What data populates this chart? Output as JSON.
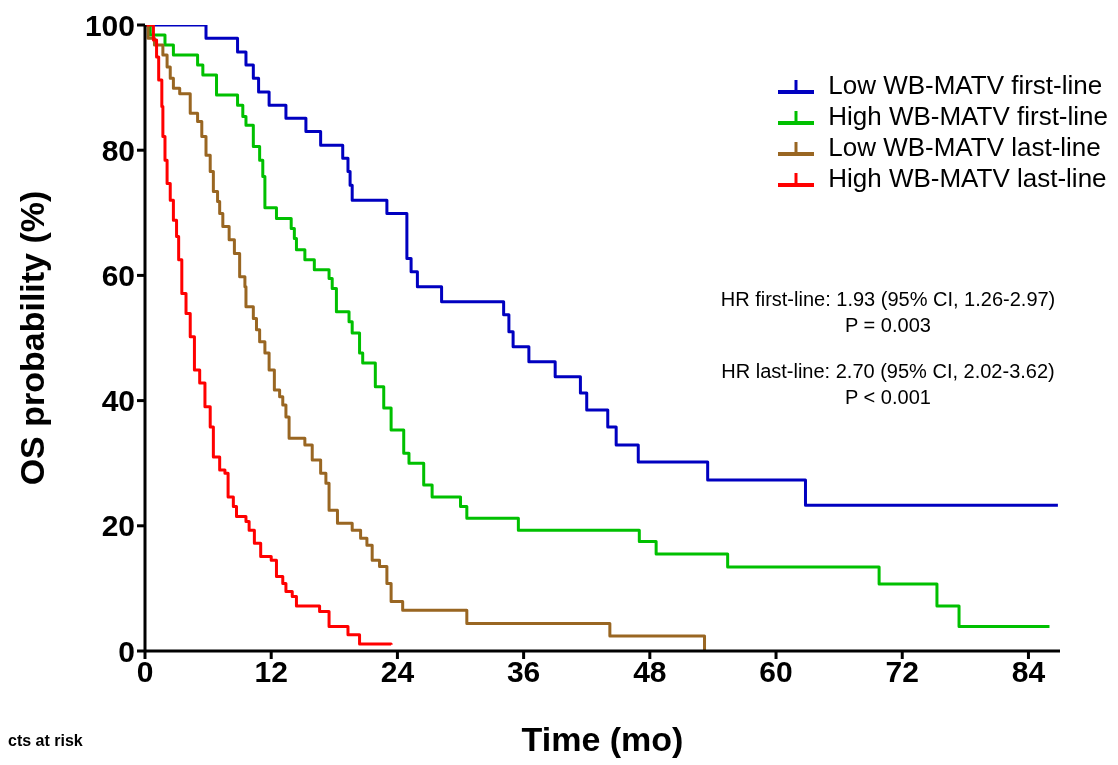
{
  "chart_data": {
    "type": "step",
    "xlabel": "Time (mo)",
    "ylabel": "OS probability (%)",
    "xlim": [
      0,
      87
    ],
    "xticks": [
      0,
      12,
      24,
      36,
      48,
      60,
      72,
      84
    ],
    "ylim": [
      0,
      100
    ],
    "yticks": [
      0,
      20,
      40,
      60,
      80,
      100
    ],
    "grid": false,
    "legend": "top right",
    "marker": "none",
    "line_style": "solid",
    "annotations": [
      "HR first-line: 1.93 (95% CI, 1.26-2.97)",
      "P = 0.003",
      "HR last-line: 2.70 (95% CI, 2.02-3.62)",
      "P < 0.001",
      "cts at risk"
    ],
    "series": [
      {
        "name": "Low WB-MATV first-line",
        "color": "#0000c0",
        "x": [
          0,
          5.8,
          8.8,
          9.6,
          10.3,
          10.8,
          11.8,
          13.4,
          15.3,
          16.7,
          18.8,
          19.3,
          19.5,
          19.7,
          23.0,
          24.9,
          25.3,
          25.9,
          28.2,
          34.1,
          34.6,
          35.0,
          36.5,
          39.0,
          41.4,
          42.0,
          44.0,
          44.8,
          46.9,
          53.5,
          62.8,
          86.8
        ],
        "values": [
          100,
          97.9,
          95.7,
          93.6,
          91.5,
          89.3,
          87.2,
          85.1,
          83.0,
          80.8,
          78.7,
          76.6,
          74.4,
          72.0,
          69.9,
          62.7,
          60.6,
          58.2,
          55.8,
          53.7,
          51.0,
          48.6,
          46.2,
          43.8,
          41.2,
          38.5,
          35.8,
          32.9,
          30.2,
          27.3,
          23.3,
          23.3
        ]
      },
      {
        "name": "High WB-MATV first-line",
        "color": "#00c000",
        "x": [
          0,
          0.5,
          1.9,
          2.7,
          5.0,
          5.5,
          6.8,
          8.8,
          9.3,
          9.6,
          10.3,
          10.9,
          11.2,
          11.4,
          12.5,
          13.9,
          14.2,
          14.4,
          15.2,
          16.1,
          17.5,
          17.8,
          18.2,
          19.4,
          19.7,
          20.4,
          20.7,
          21.9,
          22.7,
          23.4,
          24.6,
          25.1,
          26.5,
          27.3,
          30.0,
          30.6,
          35.5,
          47.0,
          48.6,
          55.4,
          69.8,
          75.3,
          77.4,
          86.0
        ],
        "values": [
          100,
          98.4,
          96.8,
          95.2,
          93.6,
          92.0,
          88.8,
          87.2,
          85.4,
          84.0,
          80.6,
          78.4,
          75.8,
          70.8,
          69.1,
          67.5,
          65.9,
          64.1,
          62.5,
          60.9,
          59.5,
          57.9,
          54.2,
          52.6,
          50.8,
          47.6,
          46.0,
          42.2,
          38.8,
          35.3,
          31.6,
          30.0,
          26.5,
          24.6,
          23.1,
          21.2,
          19.3,
          17.5,
          15.5,
          13.4,
          10.7,
          7.2,
          3.9,
          3.9
        ]
      },
      {
        "name": "Low WB-MATV last-line",
        "color": "#996622",
        "x": [
          0,
          0.3,
          0.9,
          1.7,
          2.1,
          2.4,
          2.7,
          3.3,
          4.3,
          5.0,
          5.4,
          5.8,
          6.2,
          6.5,
          6.9,
          7.1,
          7.4,
          8.0,
          8.5,
          9.0,
          9.5,
          9.6,
          10.3,
          10.6,
          10.9,
          11.4,
          11.8,
          12.3,
          12.8,
          13.1,
          13.4,
          13.7,
          15.2,
          15.9,
          16.7,
          17.2,
          17.5,
          18.3,
          19.7,
          20.5,
          21.1,
          21.6,
          22.3,
          23.0,
          23.4,
          24.5,
          30.6,
          44.2,
          53.2
        ],
        "values": [
          100,
          97.9,
          96.8,
          95.2,
          93.3,
          91.5,
          89.9,
          89.0,
          85.9,
          84.6,
          82.2,
          79.2,
          76.6,
          73.4,
          71.8,
          69.9,
          67.8,
          65.7,
          63.5,
          59.8,
          58.2,
          55.0,
          53.1,
          51.3,
          49.4,
          47.6,
          44.9,
          41.7,
          40.6,
          39.3,
          37.4,
          34.0,
          32.9,
          30.5,
          28.4,
          26.8,
          22.5,
          20.4,
          19.3,
          18.0,
          16.9,
          14.5,
          13.5,
          10.8,
          7.9,
          6.5,
          4.4,
          2.4,
          0
        ]
      },
      {
        "name": "High WB-MATV last-line",
        "color": "#ff0000",
        "x": [
          0,
          0.8,
          1.1,
          1.3,
          1.6,
          1.7,
          1.9,
          2.1,
          2.4,
          2.7,
          3.0,
          3.2,
          3.5,
          3.9,
          4.3,
          4.7,
          5.2,
          5.7,
          6.2,
          6.5,
          7.1,
          7.6,
          7.9,
          8.4,
          8.7,
          9.6,
          9.9,
          10.4,
          11.0,
          12.0,
          12.5,
          13.1,
          13.4,
          14.0,
          14.4,
          16.6,
          17.5,
          19.3,
          20.4,
          23.4
        ],
        "values": [
          100,
          97.6,
          94.9,
          91.2,
          87.0,
          82.2,
          78.4,
          74.7,
          72.0,
          68.8,
          66.2,
          62.5,
          57.1,
          53.9,
          50.2,
          44.9,
          42.8,
          39.0,
          35.8,
          31.0,
          28.9,
          28.4,
          24.6,
          23.1,
          21.5,
          20.7,
          19.3,
          17.2,
          15.1,
          14.5,
          11.9,
          10.8,
          9.5,
          8.7,
          7.2,
          6.3,
          3.9,
          2.6,
          1.1,
          1.0
        ]
      }
    ]
  }
}
